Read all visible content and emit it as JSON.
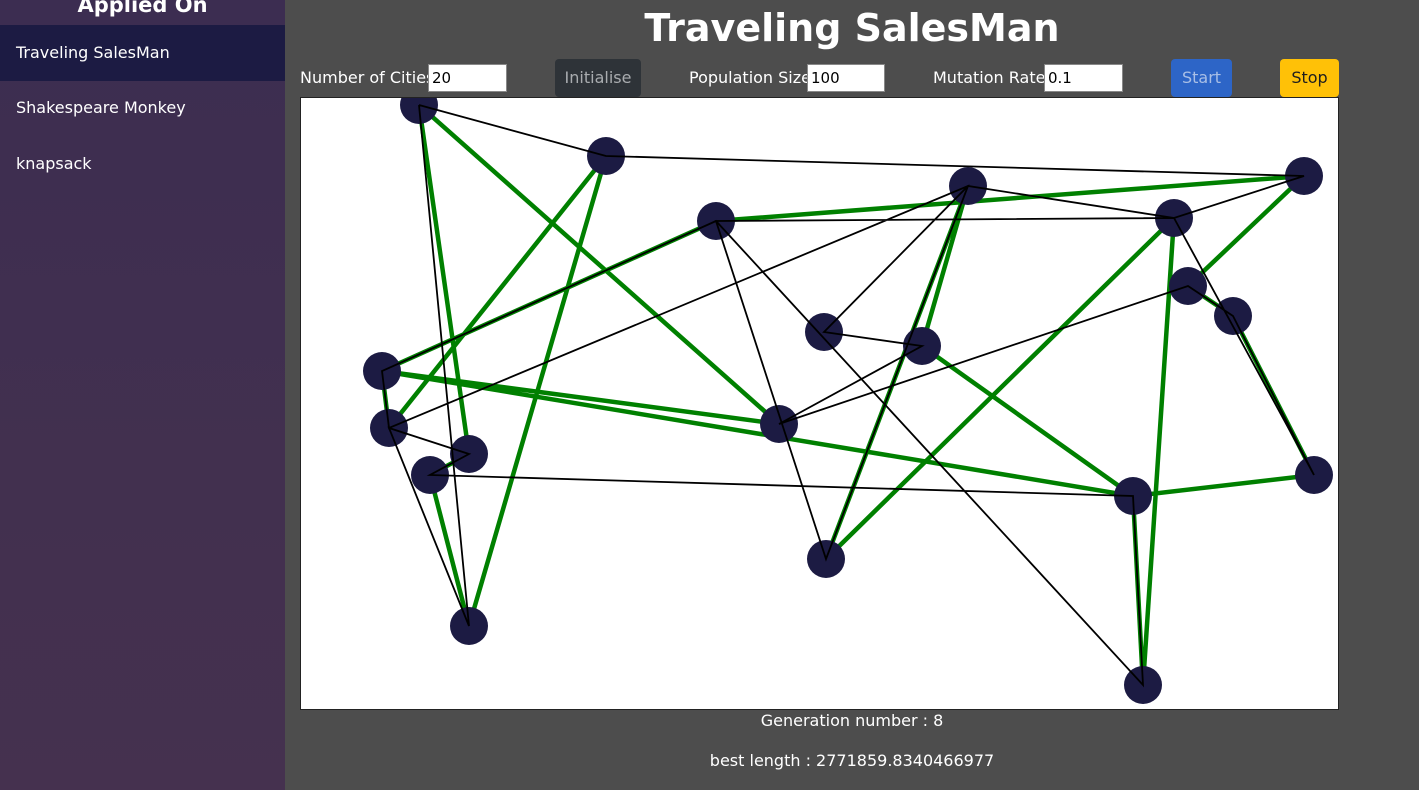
{
  "sidebar": {
    "heading": "Applied On",
    "items": [
      {
        "label": "Traveling SalesMan",
        "active": true
      },
      {
        "label": "Shakespeare Monkey",
        "active": false
      },
      {
        "label": "knapsack",
        "active": false
      }
    ]
  },
  "header": {
    "title": "Traveling SalesMan"
  },
  "controls": {
    "cities_label": "Number of Cities :",
    "cities_value": "20",
    "initialise_label": "Initialise",
    "population_label": "Population Size :",
    "population_value": "100",
    "mutation_label": "Mutation Rate :",
    "mutation_value": "0.1",
    "start_label": "Start",
    "stop_label": "Stop"
  },
  "colors": {
    "city": "#1c1b43",
    "best_path": "#008000",
    "current_path": "#000000",
    "start_button": "#2d65c7",
    "stop_button": "#ffc107"
  },
  "status": {
    "generation": "Generation number : 8",
    "best_length": "best length : 2771859.8340466977"
  }
}
